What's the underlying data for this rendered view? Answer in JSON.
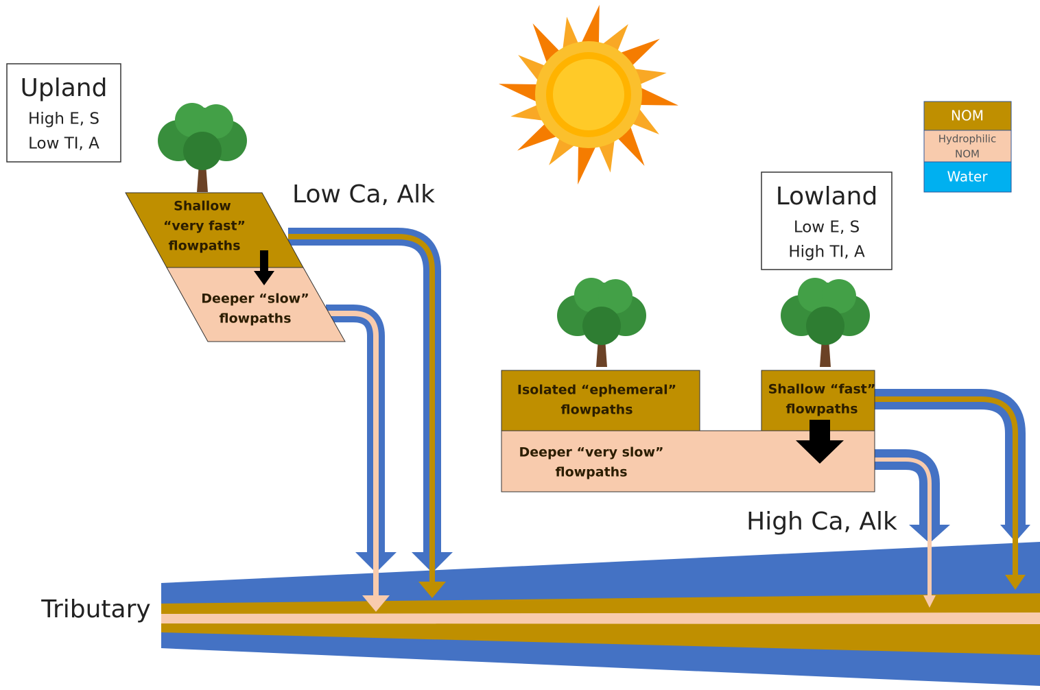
{
  "upland": {
    "title": "Upland",
    "lines": [
      "High E, S",
      "Low TI, A"
    ]
  },
  "upland_label": "Low Ca, Alk",
  "upland_shallow": [
    "Shallow",
    "“very fast”",
    "flowpaths"
  ],
  "upland_deep": [
    "Deeper “slow”",
    "flowpaths"
  ],
  "legend": {
    "nom": "NOM",
    "hydrophilic": [
      "Hydrophilic",
      "NOM"
    ],
    "water": "Water"
  },
  "lowland": {
    "title": "Lowland",
    "lines": [
      "Low E, S",
      "High TI, A"
    ]
  },
  "lowland_isolated": [
    "Isolated “ephemeral”",
    "flowpaths"
  ],
  "lowland_shallow": [
    "Shallow “fast”",
    "flowpaths"
  ],
  "lowland_deep": [
    "Deeper “very slow”",
    "flowpaths"
  ],
  "lowland_label": "High Ca, Alk",
  "tributary": "Tributary"
}
